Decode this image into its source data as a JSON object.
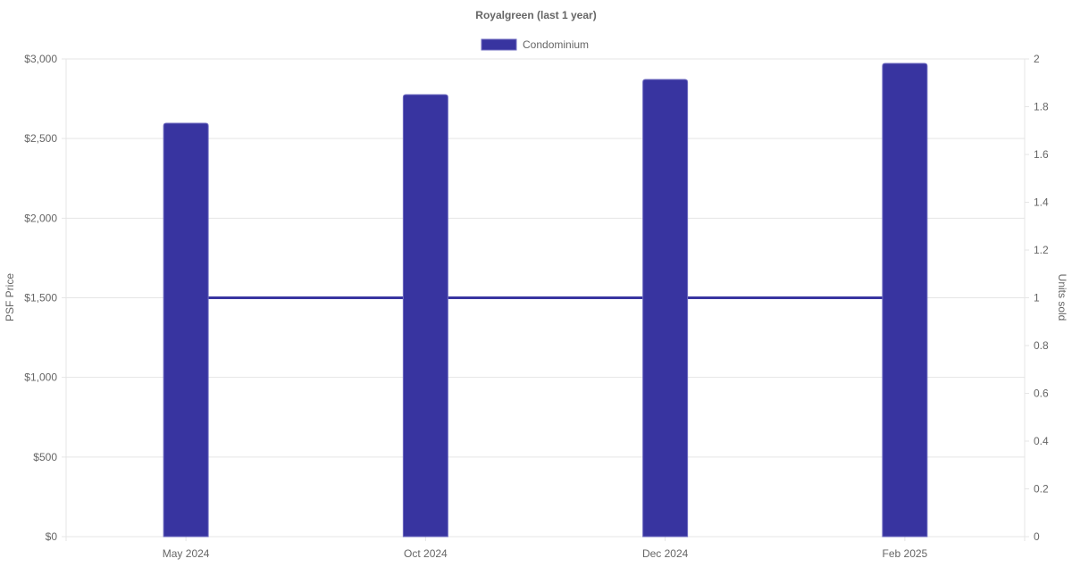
{
  "chart_data": {
    "type": "bar",
    "title": "Royalgreen (last 1 year)",
    "categories": [
      "May 2024",
      "Oct 2024",
      "Dec 2024",
      "Feb 2025"
    ],
    "series": [
      {
        "name": "Condominium",
        "type": "bar",
        "axis": "left",
        "values": [
          2596,
          2776,
          2871,
          2972
        ],
        "color": "#3834a0"
      },
      {
        "type": "line",
        "axis": "right",
        "values": [
          1,
          1,
          1,
          1
        ],
        "color": "#3834a0"
      }
    ],
    "ylabel": "PSF Price",
    "y2label": "Units sold",
    "ylim": [
      0,
      3000
    ],
    "y2lim": [
      0,
      2
    ],
    "yticks": [
      "$0",
      "$500",
      "$1,000",
      "$1,500",
      "$2,000",
      "$2,500",
      "$3,000"
    ],
    "y2ticks": [
      "0",
      "0.2",
      "0.4",
      "0.6",
      "0.8",
      "1",
      "1.2",
      "1.4",
      "1.6",
      "1.8",
      "2"
    ],
    "legend": {
      "position": "top",
      "entries": [
        "Condominium"
      ]
    },
    "grid": true
  }
}
